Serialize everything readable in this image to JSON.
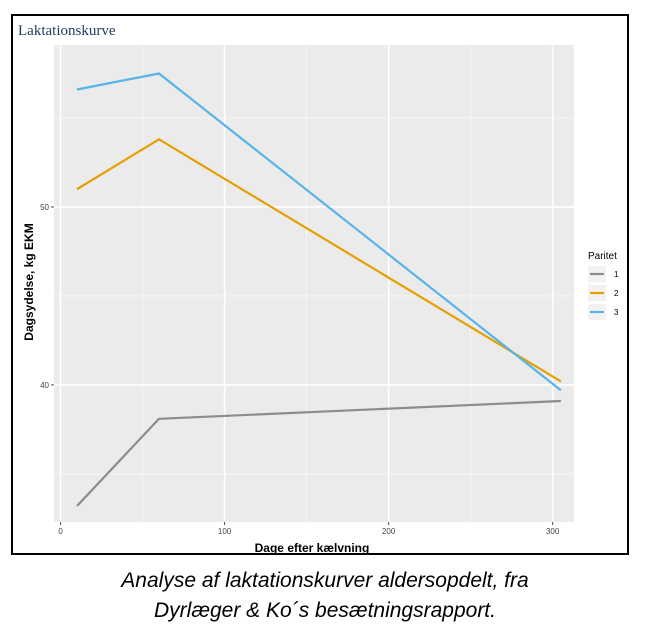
{
  "panel_title": "Laktationskurve",
  "caption": {
    "line1": "Analyse af laktationskurver aldersopdelt, fra",
    "line2": "Dyrlæger & Ko´s besætningsrapport."
  },
  "chart_data": {
    "type": "line",
    "title": "",
    "xlabel": "Dage efter kælvning",
    "ylabel": "Dagsydelse, kg EKM",
    "xlim": [
      -4,
      313
    ],
    "ylim": [
      32.3,
      59.1
    ],
    "x_ticks": [
      0,
      100,
      200,
      300
    ],
    "y_ticks": [
      40,
      50
    ],
    "grid": true,
    "background": "#ebebeb",
    "legend_title": "Paritet",
    "legend_position": "right",
    "series": [
      {
        "name": "1",
        "color": "#8c8c8c",
        "x": [
          10,
          60,
          305
        ],
        "y": [
          33.2,
          38.1,
          39.1
        ]
      },
      {
        "name": "2",
        "color": "#e69f00",
        "x": [
          10,
          60,
          305
        ],
        "y": [
          51.0,
          53.8,
          40.2
        ]
      },
      {
        "name": "3",
        "color": "#56b4e9",
        "x": [
          10,
          60,
          305
        ],
        "y": [
          56.6,
          57.5,
          39.7
        ]
      }
    ]
  }
}
